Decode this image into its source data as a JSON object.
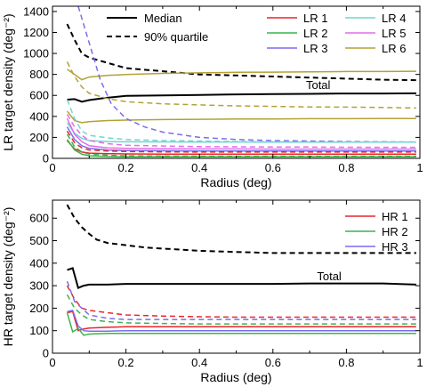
{
  "chart_data": [
    {
      "type": "line",
      "xlabel": "Radius (deg)",
      "ylabel": "LR target density (deg⁻²)",
      "xlim": [
        0,
        1
      ],
      "ylim": [
        0,
        1450
      ],
      "xticks": [
        0,
        0.2,
        0.4,
        0.6,
        0.8,
        1
      ],
      "xtick_labels": [
        "0",
        "0.2",
        "0.4",
        "0.6",
        "0.8",
        "1"
      ],
      "yticks": [
        0,
        200,
        400,
        600,
        800,
        1000,
        1200,
        1400
      ],
      "ytick_labels": [
        "0",
        "200",
        "400",
        "600",
        "800",
        "1000",
        "1200",
        "1400"
      ],
      "grid": false,
      "legend_style": [
        {
          "name": "Median",
          "style": "solid",
          "color": "#000000"
        },
        {
          "name": "90% quartile",
          "style": "dashed",
          "color": "#000000"
        }
      ],
      "legend_series": [
        {
          "name": "LR 1",
          "color": "#e8252b"
        },
        {
          "name": "LR 2",
          "color": "#3cb44b"
        },
        {
          "name": "LR 3",
          "color": "#7b6cf0"
        },
        {
          "name": "LR 4",
          "color": "#6fd6cf"
        },
        {
          "name": "LR 5",
          "color": "#e26de8"
        },
        {
          "name": "LR 6",
          "color": "#b3a233"
        }
      ],
      "annotations": [
        {
          "text": "Total",
          "x": 0.69,
          "y": 660
        }
      ],
      "series": [
        {
          "name": "Total",
          "color": "#000000",
          "style": "solid",
          "width": 2,
          "x": [
            0.04,
            0.06,
            0.08,
            0.1,
            0.14,
            0.2,
            0.3,
            0.4,
            0.5,
            0.6,
            0.7,
            0.8,
            0.9,
            0.99
          ],
          "y": [
            560,
            565,
            540,
            555,
            575,
            595,
            600,
            605,
            610,
            612,
            615,
            618,
            618,
            620
          ]
        },
        {
          "name": "Total 90% quartile",
          "color": "#000000",
          "style": "dashed",
          "width": 2,
          "x": [
            0.04,
            0.06,
            0.08,
            0.1,
            0.14,
            0.2,
            0.3,
            0.4,
            0.5,
            0.6,
            0.7,
            0.8,
            0.9,
            0.99
          ],
          "y": [
            1280,
            1130,
            1000,
            960,
            920,
            860,
            830,
            800,
            790,
            780,
            770,
            760,
            750,
            745
          ]
        },
        {
          "name": "LR 6",
          "color": "#b3a233",
          "style": "solid",
          "width": 1.5,
          "x": [
            0.04,
            0.06,
            0.08,
            0.1,
            0.15,
            0.2,
            0.3,
            0.4,
            0.5,
            0.6,
            0.7,
            0.8,
            0.9,
            0.99
          ],
          "y": [
            850,
            800,
            750,
            775,
            790,
            800,
            810,
            815,
            820,
            822,
            825,
            828,
            828,
            830
          ]
        },
        {
          "name": "LR 6",
          "color": "#b3a233",
          "style": "solid",
          "width": 1.5,
          "x": [
            0.04,
            0.06,
            0.08,
            0.1,
            0.15,
            0.2,
            0.3,
            0.4,
            0.5,
            0.6,
            0.7,
            0.8,
            0.9,
            0.99
          ],
          "y": [
            450,
            360,
            340,
            350,
            360,
            365,
            370,
            372,
            375,
            375,
            378,
            378,
            380,
            380
          ]
        },
        {
          "name": "LR 6 90% quartile",
          "color": "#b3a233",
          "style": "dashed",
          "width": 1.5,
          "x": [
            0.04,
            0.06,
            0.08,
            0.1,
            0.15,
            0.2,
            0.3,
            0.4,
            0.5,
            0.6,
            0.7,
            0.8,
            0.9,
            0.99
          ],
          "y": [
            920,
            780,
            680,
            620,
            570,
            540,
            520,
            510,
            500,
            495,
            490,
            488,
            485,
            480
          ]
        },
        {
          "name": "LR 3 90% quartile",
          "color": "#7b6cf0",
          "style": "dashed",
          "width": 1.5,
          "x": [
            0.07,
            0.1,
            0.13,
            0.16,
            0.2,
            0.25,
            0.3,
            0.4,
            0.5,
            0.6,
            0.7,
            0.8,
            0.9,
            0.99
          ],
          "y": [
            1450,
            1100,
            750,
            520,
            380,
            300,
            250,
            200,
            180,
            170,
            165,
            160,
            158,
            155
          ]
        },
        {
          "name": "LR 4",
          "color": "#6fd6cf",
          "style": "solid",
          "width": 1.5,
          "x": [
            0.04,
            0.06,
            0.08,
            0.1,
            0.15,
            0.2,
            0.3,
            0.4,
            0.5,
            0.6,
            0.7,
            0.8,
            0.9,
            0.99
          ],
          "y": [
            340,
            240,
            190,
            170,
            160,
            158,
            157,
            156,
            156,
            155,
            155,
            155,
            155,
            155
          ]
        },
        {
          "name": "LR 4 90% quartile",
          "color": "#6fd6cf",
          "style": "dashed",
          "width": 1.5,
          "x": [
            0.04,
            0.06,
            0.08,
            0.1,
            0.15,
            0.2,
            0.3,
            0.4,
            0.5,
            0.6,
            0.7,
            0.8,
            0.9,
            0.99
          ],
          "y": [
            560,
            380,
            260,
            220,
            195,
            180,
            170,
            165,
            160,
            158,
            156,
            155,
            155,
            155
          ]
        },
        {
          "name": "LR 5",
          "color": "#e26de8",
          "style": "solid",
          "width": 1.5,
          "x": [
            0.04,
            0.06,
            0.08,
            0.1,
            0.15,
            0.2,
            0.3,
            0.4,
            0.5,
            0.6,
            0.7,
            0.8,
            0.9,
            0.99
          ],
          "y": [
            380,
            230,
            160,
            120,
            100,
            95,
            92,
            90,
            90,
            88,
            88,
            88,
            88,
            88
          ]
        },
        {
          "name": "LR 5 90% quartile",
          "color": "#e26de8",
          "style": "dashed",
          "width": 1.5,
          "x": [
            0.04,
            0.06,
            0.08,
            0.1,
            0.15,
            0.2,
            0.3,
            0.4,
            0.5,
            0.6,
            0.7,
            0.8,
            0.9,
            0.99
          ],
          "y": [
            420,
            300,
            220,
            170,
            140,
            125,
            118,
            112,
            110,
            108,
            108,
            106,
            105,
            105
          ]
        },
        {
          "name": "LR 3",
          "color": "#7b6cf0",
          "style": "solid",
          "width": 1.5,
          "x": [
            0.04,
            0.06,
            0.08,
            0.1,
            0.15,
            0.2,
            0.3,
            0.4,
            0.5,
            0.6,
            0.7,
            0.8,
            0.9,
            0.99
          ],
          "y": [
            300,
            180,
            120,
            95,
            80,
            75,
            72,
            70,
            70,
            70,
            70,
            70,
            70,
            70
          ]
        },
        {
          "name": "LR 1",
          "color": "#e8252b",
          "style": "solid",
          "width": 1.5,
          "x": [
            0.04,
            0.06,
            0.08,
            0.1,
            0.15,
            0.2,
            0.3,
            0.4,
            0.5,
            0.6,
            0.7,
            0.8,
            0.9,
            0.99
          ],
          "y": [
            170,
            90,
            60,
            50,
            45,
            42,
            40,
            40,
            40,
            40,
            40,
            40,
            40,
            40
          ]
        },
        {
          "name": "LR 1 90% quartile",
          "color": "#e8252b",
          "style": "dashed",
          "width": 1.5,
          "x": [
            0.04,
            0.06,
            0.08,
            0.1,
            0.15,
            0.2,
            0.3,
            0.4,
            0.5,
            0.6,
            0.7,
            0.8,
            0.9,
            0.99
          ],
          "y": [
            260,
            150,
            100,
            80,
            70,
            65,
            62,
            60,
            60,
            60,
            60,
            60,
            60,
            60
          ]
        },
        {
          "name": "LR 2",
          "color": "#3cb44b",
          "style": "solid",
          "width": 1.5,
          "x": [
            0.04,
            0.06,
            0.08,
            0.1,
            0.15,
            0.2,
            0.3,
            0.4,
            0.5,
            0.6,
            0.7,
            0.8,
            0.9,
            0.99
          ],
          "y": [
            180,
            80,
            40,
            25,
            18,
            15,
            14,
            14,
            14,
            14,
            14,
            14,
            14,
            14
          ]
        },
        {
          "name": "LR 2 90% quartile",
          "color": "#3cb44b",
          "style": "dashed",
          "width": 1.5,
          "x": [
            0.04,
            0.06,
            0.08,
            0.1,
            0.15,
            0.2,
            0.3,
            0.4,
            0.5,
            0.6,
            0.7,
            0.8,
            0.9,
            0.99
          ],
          "y": [
            230,
            110,
            60,
            40,
            30,
            25,
            22,
            20,
            20,
            20,
            20,
            20,
            20,
            20
          ]
        }
      ]
    },
    {
      "type": "line",
      "xlabel": "Radius (deg)",
      "ylabel": "HR target density (deg⁻²)",
      "xlim": [
        0,
        1
      ],
      "ylim": [
        0,
        680
      ],
      "xticks": [
        0,
        0.2,
        0.4,
        0.6,
        0.8,
        1
      ],
      "xtick_labels": [
        "0",
        "0.2",
        "0.4",
        "0.6",
        "0.8",
        "1"
      ],
      "yticks": [
        0,
        100,
        200,
        300,
        400,
        500,
        600
      ],
      "ytick_labels": [
        "0",
        "100",
        "200",
        "300",
        "400",
        "500",
        "600"
      ],
      "grid": false,
      "legend_series": [
        {
          "name": "HR 1",
          "color": "#e8252b"
        },
        {
          "name": "HR 2",
          "color": "#3cb44b"
        },
        {
          "name": "HR 3",
          "color": "#7b6cf0"
        }
      ],
      "annotations": [
        {
          "text": "Total",
          "x": 0.72,
          "y": 325
        }
      ],
      "series": [
        {
          "name": "Total 90% quartile",
          "color": "#000000",
          "style": "dashed",
          "width": 2,
          "x": [
            0.04,
            0.06,
            0.08,
            0.1,
            0.12,
            0.15,
            0.2,
            0.25,
            0.3,
            0.4,
            0.5,
            0.6,
            0.7,
            0.8,
            0.9,
            0.99
          ],
          "y": [
            660,
            600,
            560,
            530,
            505,
            490,
            480,
            470,
            465,
            455,
            450,
            445,
            445,
            445,
            445,
            445
          ]
        },
        {
          "name": "Total",
          "color": "#000000",
          "style": "solid",
          "width": 2,
          "x": [
            0.04,
            0.055,
            0.07,
            0.085,
            0.1,
            0.15,
            0.2,
            0.3,
            0.4,
            0.5,
            0.6,
            0.7,
            0.8,
            0.9,
            0.99
          ],
          "y": [
            370,
            378,
            290,
            300,
            305,
            305,
            308,
            308,
            308,
            308,
            308,
            310,
            310,
            310,
            305
          ]
        },
        {
          "name": "HR 1 90% quartile",
          "color": "#e8252b",
          "style": "dashed",
          "width": 1.5,
          "x": [
            0.04,
            0.06,
            0.08,
            0.1,
            0.15,
            0.2,
            0.3,
            0.4,
            0.5,
            0.6,
            0.7,
            0.8,
            0.9,
            0.99
          ],
          "y": [
            300,
            240,
            200,
            190,
            180,
            170,
            165,
            162,
            160,
            160,
            160,
            160,
            160,
            160
          ]
        },
        {
          "name": "HR 3 90% quartile",
          "color": "#7b6cf0",
          "style": "dashed",
          "width": 1.5,
          "x": [
            0.04,
            0.06,
            0.08,
            0.1,
            0.15,
            0.2,
            0.3,
            0.4,
            0.5,
            0.6,
            0.7,
            0.8,
            0.9,
            0.99
          ],
          "y": [
            320,
            230,
            200,
            170,
            155,
            150,
            150,
            150,
            150,
            150,
            150,
            150,
            150,
            150
          ]
        },
        {
          "name": "HR 2 90% quartile",
          "color": "#3cb44b",
          "style": "dashed",
          "width": 1.5,
          "x": [
            0.04,
            0.06,
            0.08,
            0.1,
            0.15,
            0.2,
            0.3,
            0.4,
            0.5,
            0.6,
            0.7,
            0.8,
            0.9,
            0.99
          ],
          "y": [
            260,
            200,
            170,
            150,
            140,
            135,
            132,
            130,
            130,
            130,
            130,
            130,
            130,
            130
          ]
        },
        {
          "name": "HR 1",
          "color": "#e8252b",
          "style": "solid",
          "width": 1.5,
          "x": [
            0.04,
            0.055,
            0.07,
            0.085,
            0.1,
            0.15,
            0.2,
            0.3,
            0.4,
            0.5,
            0.6,
            0.7,
            0.8,
            0.9,
            0.99
          ],
          "y": [
            180,
            185,
            100,
            108,
            112,
            115,
            118,
            118,
            118,
            118,
            118,
            118,
            118,
            118,
            118
          ]
        },
        {
          "name": "HR 3",
          "color": "#7b6cf0",
          "style": "solid",
          "width": 1.5,
          "x": [
            0.04,
            0.055,
            0.07,
            0.085,
            0.1,
            0.15,
            0.2,
            0.3,
            0.4,
            0.5,
            0.6,
            0.7,
            0.8,
            0.9,
            0.99
          ],
          "y": [
            185,
            190,
            120,
            100,
            98,
            98,
            100,
            100,
            100,
            100,
            100,
            100,
            100,
            100,
            100
          ]
        },
        {
          "name": "HR 2",
          "color": "#3cb44b",
          "style": "solid",
          "width": 1.5,
          "x": [
            0.04,
            0.055,
            0.07,
            0.085,
            0.1,
            0.15,
            0.2,
            0.3,
            0.4,
            0.5,
            0.6,
            0.7,
            0.8,
            0.9,
            0.99
          ],
          "y": [
            180,
            95,
            110,
            80,
            85,
            88,
            88,
            88,
            88,
            88,
            88,
            88,
            88,
            88,
            88
          ]
        }
      ]
    }
  ]
}
